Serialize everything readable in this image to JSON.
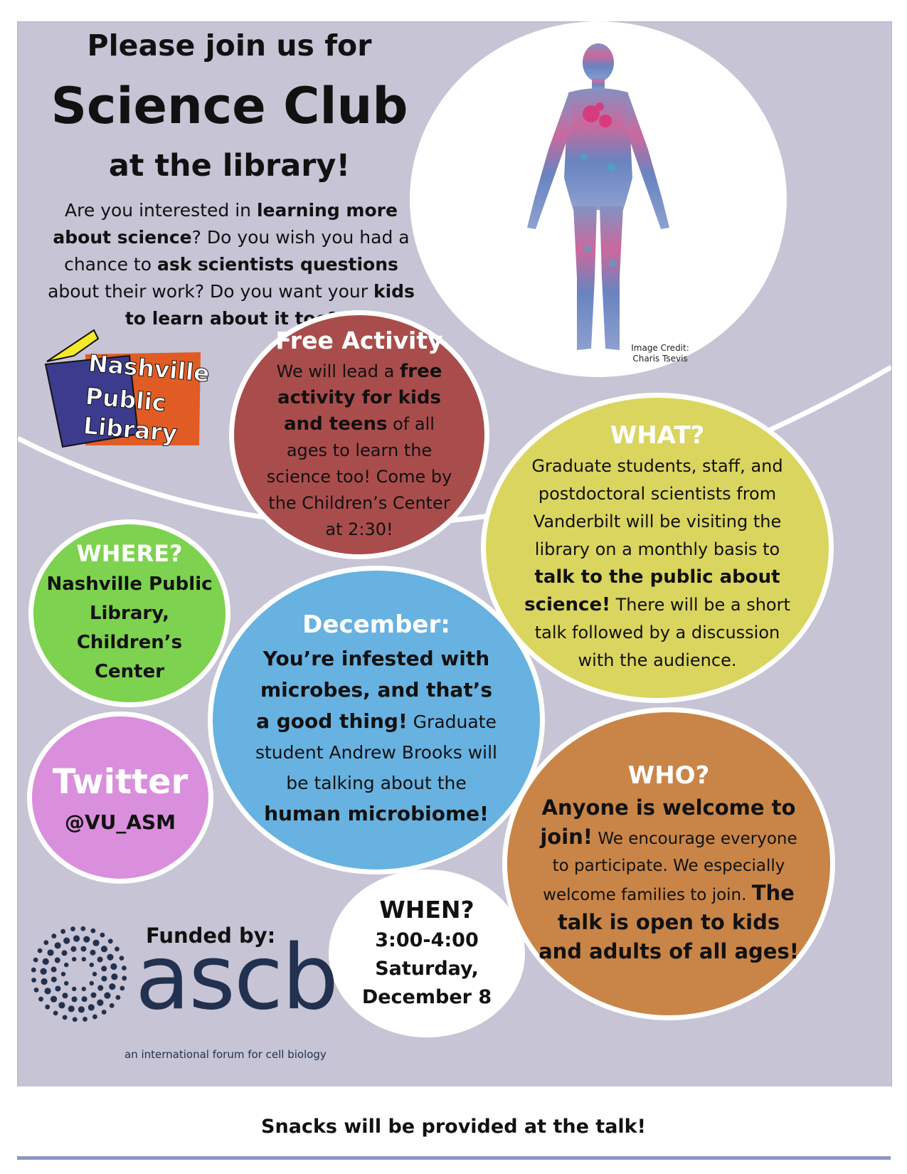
{
  "header": {
    "line1": "Please join us for",
    "line2": "Science Club",
    "line3": "at the library!"
  },
  "intro": {
    "p1": "Are you interested in ",
    "b1": "learning more about science",
    "p2": "? Do you wish you had a chance to ",
    "b2": "ask scientists questions",
    "p3": " about their work? Do you want your ",
    "b3": "kids to learn about it too",
    "p4": "?"
  },
  "image_credit": {
    "line1": "Image Credit:",
    "line2": "Charis Tsevis"
  },
  "library_logo": {
    "line1": "Nashville",
    "line2": "Public",
    "line3": "Library"
  },
  "free_activity": {
    "title": "Free Activity",
    "t1": "We will lead a ",
    "b1": "free activity for kids and teens",
    "t2": " of all ages to learn the science too! Come by the Children’s Center at 2:30!"
  },
  "what": {
    "title": "WHAT?",
    "t1": "Graduate students, staff, and postdoctoral scientists from Vanderbilt will be visiting the library on a monthly basis to ",
    "b1": "talk to the public about science!",
    "t2": " There will be a short talk followed by a discussion with the audience."
  },
  "where": {
    "title": "WHERE?",
    "line1": "Nashville Public",
    "line2": "Library,",
    "line3": "Children’s",
    "line4": "Center"
  },
  "december": {
    "title": "December:",
    "b1": "You’re infested with microbes, and that’s a good thing!",
    "t1": " Graduate student Andrew Brooks will be talking about the ",
    "b2": "human microbiome!"
  },
  "twitter": {
    "title": "Twitter",
    "handle": "@VU_ASM"
  },
  "who": {
    "title": "WHO?",
    "b1": "Anyone is welcome to join!",
    "t1": " We encourage everyone to participate. We especially welcome families to join. ",
    "b2": "The talk is open to kids and adults of all ages!"
  },
  "when": {
    "title": "WHEN?",
    "line1": "3:00-4:00",
    "line2": "Saturday,",
    "line3": "December 8"
  },
  "funding": {
    "label": "Funded by:",
    "org": "ascb",
    "tagline": "an international forum for cell biology"
  },
  "footer": {
    "text": "Snacks will be provided at the talk!"
  },
  "colors": {
    "panel": "#c6c4d5",
    "free_activity": "#a94d4c",
    "what": "#dad55f",
    "where": "#7dd24f",
    "december": "#67b2e0",
    "twitter": "#d98fdc",
    "who": "#c98547",
    "ascb": "#22314f"
  }
}
